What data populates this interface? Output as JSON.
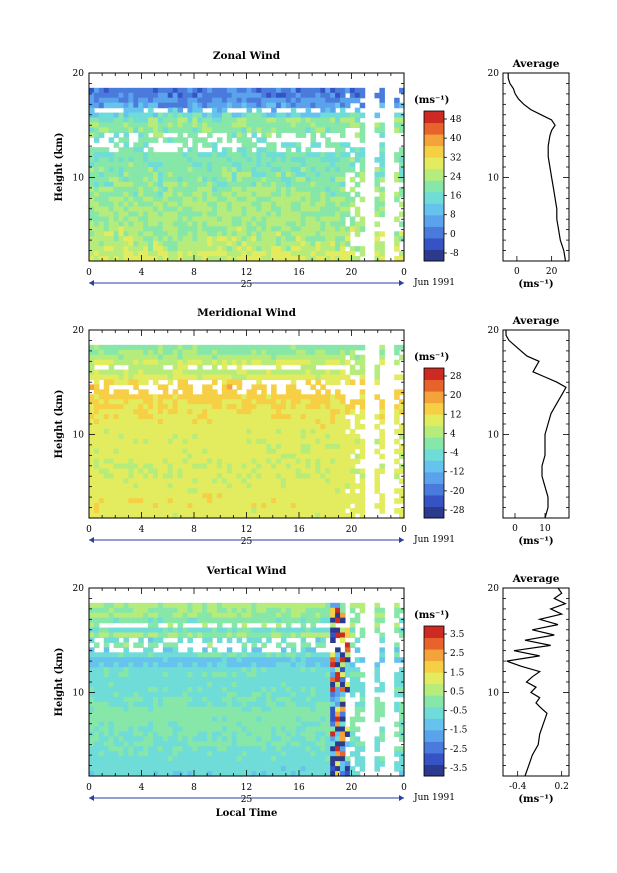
{
  "figure": {
    "ylabel": "Height (km)",
    "unit": "(ms⁻¹)",
    "avg_title": "Average",
    "day_label": "25",
    "date_label": "Jun 1991",
    "xlabel": "Local Time"
  },
  "colors": [
    "#2b3a8c",
    "#3553c4",
    "#4a7bdc",
    "#5aa3ec",
    "#66c3ee",
    "#6fdcd8",
    "#86e7a8",
    "#b5ec7c",
    "#e2ec5e",
    "#f6cf45",
    "#f4a23a",
    "#e8632c",
    "#cc2a22"
  ],
  "chart_data": [
    {
      "type": "heatmap",
      "title": "Zonal Wind",
      "xlabel": "",
      "ylabel": "Height (km)",
      "x_ticks": [
        "0",
        "4",
        "8",
        "12",
        "16",
        "20",
        "0"
      ],
      "x_range": [
        0,
        24
      ],
      "y_range": [
        2,
        20
      ],
      "y_ticks": [
        "20",
        "10"
      ],
      "colorbar_ticks": [
        "48",
        "40",
        "32",
        "24",
        "16",
        "8",
        "0",
        "-8"
      ],
      "colorbar_range": [
        -12,
        52
      ],
      "avg_x_ticks": [
        "0",
        "20"
      ],
      "avg_x_range": [
        -8,
        30
      ],
      "avg_profile": {
        "height": [
          2,
          3,
          4,
          5,
          6,
          7,
          8,
          9,
          10,
          11,
          12,
          13,
          14,
          14.5,
          15,
          15.5,
          16,
          16.5,
          17,
          17.5,
          18,
          18.5,
          19,
          19.5,
          20
        ],
        "value": [
          28,
          27,
          25,
          24,
          23,
          23,
          22,
          21,
          20,
          19,
          18,
          18,
          19,
          20,
          22,
          20,
          14,
          8,
          4,
          1,
          -1,
          -2,
          -4,
          -5,
          -5
        ]
      }
    },
    {
      "type": "heatmap",
      "title": "Meridional Wind",
      "xlabel": "",
      "ylabel": "Height (km)",
      "x_ticks": [
        "0",
        "4",
        "8",
        "12",
        "16",
        "20",
        "0"
      ],
      "x_range": [
        0,
        24
      ],
      "y_range": [
        2,
        20
      ],
      "y_ticks": [
        "20",
        "10"
      ],
      "colorbar_ticks": [
        "28",
        "20",
        "12",
        "4",
        "-4",
        "-12",
        "-20",
        "-28"
      ],
      "colorbar_range": [
        -32,
        32
      ],
      "avg_x_ticks": [
        "0",
        "10"
      ],
      "avg_x_range": [
        -4,
        18
      ],
      "avg_profile": {
        "height": [
          2,
          3,
          4,
          5,
          6,
          7,
          8,
          9,
          10,
          11,
          12,
          13,
          14,
          14.5,
          15,
          15.5,
          16,
          16.5,
          17,
          17.5,
          18,
          18.5,
          19,
          19.5,
          20
        ],
        "value": [
          10,
          11,
          11,
          10,
          9,
          9,
          10,
          10,
          10,
          11,
          12,
          14,
          16,
          17,
          14,
          10,
          6,
          7,
          8,
          4,
          2,
          0,
          -2,
          -3,
          -3
        ]
      }
    },
    {
      "type": "heatmap",
      "title": "Vertical Wind",
      "xlabel": "Local Time",
      "ylabel": "Height (km)",
      "x_ticks": [
        "0",
        "4",
        "8",
        "12",
        "16",
        "20",
        "0"
      ],
      "x_range": [
        0,
        24
      ],
      "y_range": [
        2,
        20
      ],
      "y_ticks": [
        "20",
        "10"
      ],
      "colorbar_ticks": [
        "3.5",
        "2.5",
        "1.5",
        "0.5",
        "-0.5",
        "-1.5",
        "-2.5",
        "-3.5"
      ],
      "colorbar_range": [
        -4,
        4
      ],
      "avg_x_ticks": [
        "-0.4",
        "0.2"
      ],
      "avg_x_range": [
        -0.6,
        0.3
      ],
      "avg_profile": {
        "height": [
          2,
          3,
          4,
          5,
          6,
          7,
          8,
          8.5,
          9,
          9.5,
          10,
          10.5,
          11,
          11.5,
          12,
          12.5,
          13,
          13.5,
          14,
          14.5,
          15,
          15.5,
          16,
          16.5,
          17,
          17.5,
          18,
          18.5,
          19,
          19.5,
          20
        ],
        "value": [
          -0.3,
          -0.25,
          -0.2,
          -0.12,
          -0.1,
          -0.05,
          0.0,
          -0.08,
          -0.15,
          -0.1,
          -0.22,
          -0.15,
          -0.28,
          -0.2,
          -0.1,
          -0.35,
          -0.55,
          -0.1,
          -0.45,
          0.05,
          -0.3,
          0.1,
          -0.2,
          0.15,
          -0.1,
          0.2,
          0.05,
          0.25,
          0.1,
          0.2,
          0.15
        ]
      }
    }
  ]
}
